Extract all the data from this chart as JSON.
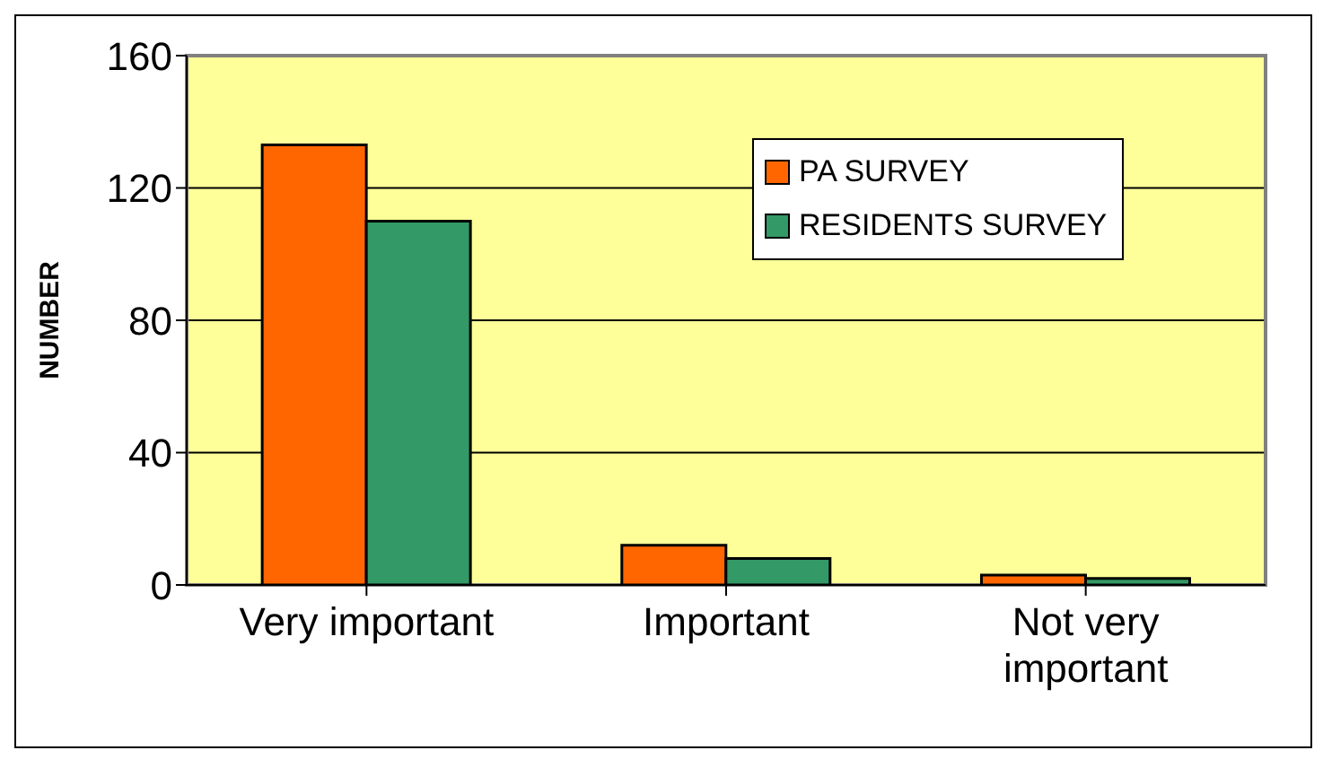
{
  "chart_data": {
    "type": "bar",
    "categories": [
      "Very important",
      "Important",
      "Not very important"
    ],
    "ylabel": "NUMBER",
    "series": [
      {
        "name": "PA SURVEY",
        "color": "#ff6600",
        "values": [
          133,
          12,
          3
        ]
      },
      {
        "name": "RESIDENTS SURVEY",
        "color": "#339966",
        "values": [
          110,
          8,
          2
        ]
      }
    ],
    "ylim": [
      0,
      160
    ],
    "yticks": [
      0,
      40,
      80,
      120,
      160
    ],
    "grid": "y",
    "legend": "top right"
  }
}
